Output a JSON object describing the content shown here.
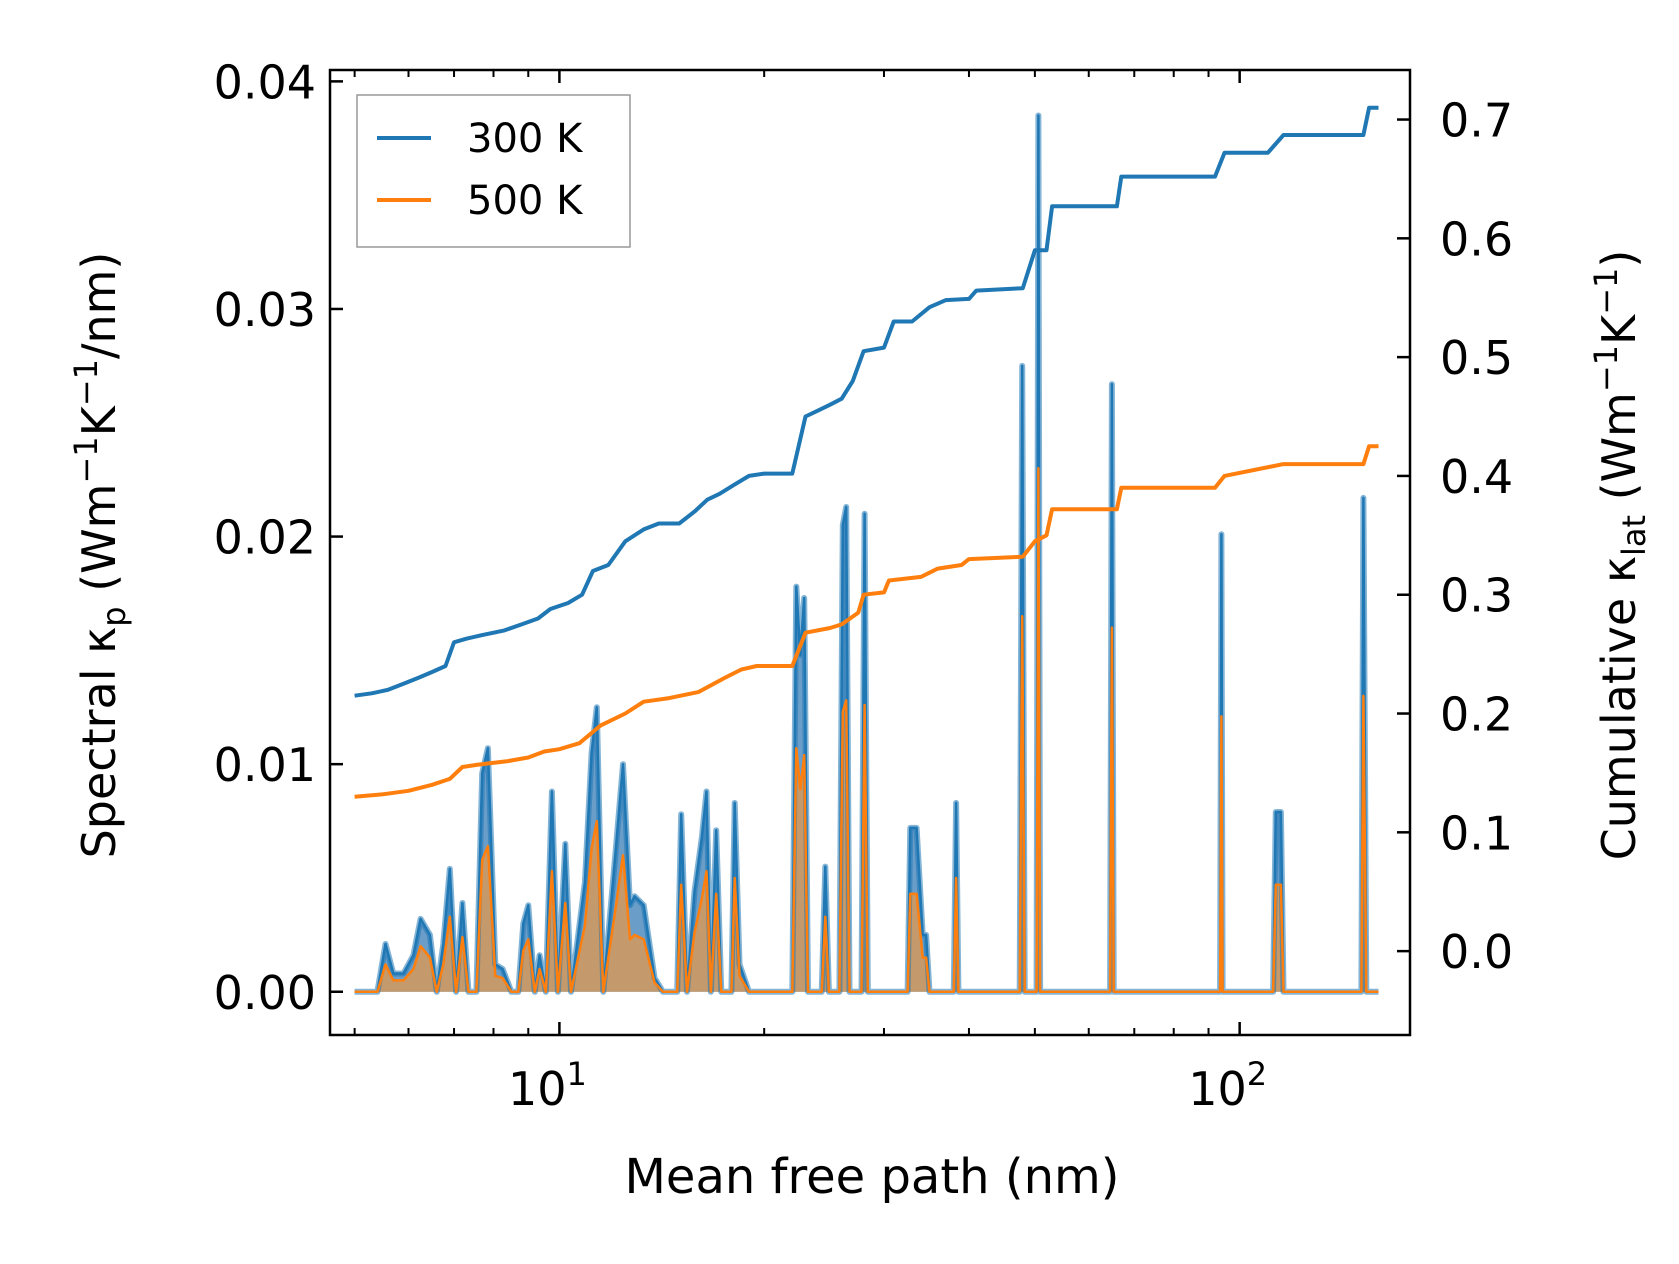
{
  "chart_data": {
    "type": "line",
    "xlabel": "Mean free path (nm)",
    "ylabel_left": {
      "main": "Spectral ",
      "kappa": "κ",
      "sub": "p",
      "open": " (Wm",
      "e1": "−1",
      "k": "K",
      "e2": "−1",
      "tail": "/nm)"
    },
    "ylabel_right": {
      "main": "Cumulative ",
      "kappa": "κ",
      "sub": "lat",
      "open": " (Wm",
      "e1": "−1",
      "k": "K",
      "e2": "−1",
      "close": ")"
    },
    "x_scale": "log",
    "xlim": [
      4.6,
      178
    ],
    "ylim_left": [
      -0.0019,
      0.0405
    ],
    "ylim_right": [
      -0.0706,
      0.7417
    ],
    "x_ticks": [
      {
        "value": 10,
        "base": "10",
        "exp": "1"
      },
      {
        "value": 100,
        "base": "10",
        "exp": "2"
      }
    ],
    "y_ticks_left": [
      "0.00",
      "0.01",
      "0.02",
      "0.03",
      "0.04"
    ],
    "y_ticks_right": [
      "0.0",
      "0.1",
      "0.2",
      "0.3",
      "0.4",
      "0.5",
      "0.6",
      "0.7"
    ],
    "legend": {
      "position": "upper-left",
      "entries": [
        "300 K",
        "500 K"
      ]
    },
    "colors": {
      "300 K": "#1f77b4",
      "500 K": "#ff7f0e",
      "fill_300": "#6a9ec9",
      "fill_500": "#c49a6c"
    },
    "series": [
      {
        "name": "300 K",
        "kind": "cumulative",
        "axis": "right",
        "points": [
          [
            5.0,
            0.215
          ],
          [
            5.3,
            0.217
          ],
          [
            5.6,
            0.22
          ],
          [
            5.9,
            0.225
          ],
          [
            6.2,
            0.23
          ],
          [
            6.5,
            0.235
          ],
          [
            6.8,
            0.24
          ],
          [
            7.0,
            0.26
          ],
          [
            7.3,
            0.263
          ],
          [
            7.7,
            0.266
          ],
          [
            8.3,
            0.27
          ],
          [
            8.8,
            0.275
          ],
          [
            9.3,
            0.28
          ],
          [
            9.7,
            0.288
          ],
          [
            10.3,
            0.293
          ],
          [
            10.8,
            0.3
          ],
          [
            11.2,
            0.32
          ],
          [
            11.8,
            0.325
          ],
          [
            12.5,
            0.345
          ],
          [
            13.3,
            0.355
          ],
          [
            14.0,
            0.36
          ],
          [
            15.0,
            0.36
          ],
          [
            15.8,
            0.37
          ],
          [
            16.5,
            0.38
          ],
          [
            17.2,
            0.385
          ],
          [
            18.0,
            0.392
          ],
          [
            19.0,
            0.4
          ],
          [
            20.0,
            0.402
          ],
          [
            22.0,
            0.402
          ],
          [
            23.0,
            0.45
          ],
          [
            24.0,
            0.455
          ],
          [
            25.0,
            0.46
          ],
          [
            26.0,
            0.465
          ],
          [
            27.0,
            0.48
          ],
          [
            28.0,
            0.505
          ],
          [
            30.0,
            0.508
          ],
          [
            31.0,
            0.53
          ],
          [
            33.0,
            0.53
          ],
          [
            35.0,
            0.542
          ],
          [
            37.0,
            0.548
          ],
          [
            40.0,
            0.549
          ],
          [
            41.0,
            0.556
          ],
          [
            48.0,
            0.558
          ],
          [
            50.0,
            0.59
          ],
          [
            52.0,
            0.59
          ],
          [
            53.0,
            0.627
          ],
          [
            60.0,
            0.627
          ],
          [
            66.0,
            0.627
          ],
          [
            67.0,
            0.652
          ],
          [
            80.0,
            0.652
          ],
          [
            92.0,
            0.652
          ],
          [
            95.0,
            0.672
          ],
          [
            110.0,
            0.672
          ],
          [
            116.0,
            0.687
          ],
          [
            140.0,
            0.687
          ],
          [
            152.0,
            0.687
          ],
          [
            155.0,
            0.71
          ],
          [
            160.0,
            0.71
          ]
        ]
      },
      {
        "name": "500 K",
        "kind": "cumulative",
        "axis": "right",
        "points": [
          [
            5.0,
            0.13
          ],
          [
            5.5,
            0.132
          ],
          [
            6.0,
            0.135
          ],
          [
            6.5,
            0.14
          ],
          [
            6.9,
            0.145
          ],
          [
            7.2,
            0.155
          ],
          [
            7.6,
            0.157
          ],
          [
            8.4,
            0.16
          ],
          [
            9.0,
            0.163
          ],
          [
            9.5,
            0.168
          ],
          [
            10.0,
            0.17
          ],
          [
            10.7,
            0.175
          ],
          [
            11.5,
            0.19
          ],
          [
            12.5,
            0.2
          ],
          [
            13.3,
            0.21
          ],
          [
            14.5,
            0.213
          ],
          [
            16.0,
            0.218
          ],
          [
            17.5,
            0.23
          ],
          [
            18.5,
            0.237
          ],
          [
            19.5,
            0.24
          ],
          [
            22.0,
            0.24
          ],
          [
            23.0,
            0.268
          ],
          [
            25.0,
            0.272
          ],
          [
            26.0,
            0.275
          ],
          [
            27.5,
            0.285
          ],
          [
            28.0,
            0.3
          ],
          [
            30.0,
            0.302
          ],
          [
            30.5,
            0.312
          ],
          [
            34.0,
            0.315
          ],
          [
            36.0,
            0.322
          ],
          [
            39.0,
            0.325
          ],
          [
            40.0,
            0.33
          ],
          [
            48.0,
            0.332
          ],
          [
            50.0,
            0.345
          ],
          [
            52.0,
            0.35
          ],
          [
            53.0,
            0.372
          ],
          [
            66.0,
            0.372
          ],
          [
            67.0,
            0.39
          ],
          [
            92.0,
            0.39
          ],
          [
            95.0,
            0.4
          ],
          [
            116.0,
            0.41
          ],
          [
            152.0,
            0.41
          ],
          [
            155.0,
            0.425
          ],
          [
            160.0,
            0.425
          ]
        ]
      },
      {
        "name": "300 K",
        "kind": "spectral",
        "axis": "left",
        "points": [
          [
            5.0,
            0.0
          ],
          [
            5.4,
            0.0
          ],
          [
            5.55,
            0.0021
          ],
          [
            5.7,
            0.0008
          ],
          [
            5.9,
            0.0008
          ],
          [
            6.1,
            0.0016
          ],
          [
            6.25,
            0.0032
          ],
          [
            6.45,
            0.0025
          ],
          [
            6.6,
            0.0
          ],
          [
            6.75,
            0.0021
          ],
          [
            6.9,
            0.0054
          ],
          [
            7.05,
            0.0
          ],
          [
            7.2,
            0.0039
          ],
          [
            7.35,
            0.0
          ],
          [
            7.55,
            0.0
          ],
          [
            7.7,
            0.0096
          ],
          [
            7.85,
            0.0107
          ],
          [
            8.05,
            0.0012
          ],
          [
            8.25,
            0.001
          ],
          [
            8.5,
            0.0
          ],
          [
            8.7,
            0.0
          ],
          [
            8.85,
            0.003
          ],
          [
            9.0,
            0.0038
          ],
          [
            9.2,
            0.0
          ],
          [
            9.35,
            0.0016
          ],
          [
            9.55,
            0.0
          ],
          [
            9.75,
            0.0088
          ],
          [
            9.95,
            0.0
          ],
          [
            10.2,
            0.0065
          ],
          [
            10.4,
            0.0
          ],
          [
            10.9,
            0.0048
          ],
          [
            11.15,
            0.0105
          ],
          [
            11.35,
            0.0125
          ],
          [
            11.6,
            0.0
          ],
          [
            12.1,
            0.0062
          ],
          [
            12.4,
            0.01
          ],
          [
            12.7,
            0.0038
          ],
          [
            12.9,
            0.0042
          ],
          [
            13.3,
            0.0038
          ],
          [
            13.8,
            0.0006
          ],
          [
            14.2,
            0.0
          ],
          [
            14.9,
            0.0
          ],
          [
            15.1,
            0.0078
          ],
          [
            15.4,
            0.0
          ],
          [
            15.8,
            0.0044
          ],
          [
            16.2,
            0.0068
          ],
          [
            16.45,
            0.0088
          ],
          [
            16.7,
            0.0
          ],
          [
            17.0,
            0.0071
          ],
          [
            17.3,
            0.0
          ],
          [
            17.9,
            0.0
          ],
          [
            18.1,
            0.0083
          ],
          [
            18.4,
            0.0012
          ],
          [
            19.0,
            0.0
          ],
          [
            22.0,
            0.0
          ],
          [
            22.3,
            0.0178
          ],
          [
            22.6,
            0.0148
          ],
          [
            22.9,
            0.0173
          ],
          [
            23.2,
            0.0
          ],
          [
            24.3,
            0.0
          ],
          [
            24.6,
            0.0055
          ],
          [
            24.9,
            0.0
          ],
          [
            25.8,
            0.0
          ],
          [
            26.1,
            0.0205
          ],
          [
            26.4,
            0.0213
          ],
          [
            26.7,
            0.0
          ],
          [
            27.8,
            0.0
          ],
          [
            28.1,
            0.021
          ],
          [
            28.4,
            0.0
          ],
          [
            32.5,
            0.0
          ],
          [
            32.8,
            0.0072
          ],
          [
            33.5,
            0.0072
          ],
          [
            34.2,
            0.0025
          ],
          [
            34.6,
            0.0025
          ],
          [
            35.0,
            0.0
          ],
          [
            38.0,
            0.0
          ],
          [
            38.3,
            0.0083
          ],
          [
            38.6,
            0.0
          ],
          [
            47.5,
            0.0
          ],
          [
            47.9,
            0.0275
          ],
          [
            48.3,
            0.0
          ],
          [
            50.3,
            0.0
          ],
          [
            50.6,
            0.0385
          ],
          [
            50.9,
            0.0
          ],
          [
            64.5,
            0.0
          ],
          [
            64.9,
            0.0267
          ],
          [
            65.3,
            0.0
          ],
          [
            93.6,
            0.0
          ],
          [
            94.0,
            0.0201
          ],
          [
            94.4,
            0.0
          ],
          [
            112.0,
            0.0
          ],
          [
            113.0,
            0.0079
          ],
          [
            115.0,
            0.0079
          ],
          [
            116.0,
            0.0
          ],
          [
            151.0,
            0.0
          ],
          [
            152.0,
            0.0217
          ],
          [
            153.5,
            0.0
          ],
          [
            160.0,
            0.0
          ]
        ]
      },
      {
        "name": "500 K",
        "kind": "spectral",
        "axis": "left",
        "points": [
          [
            5.0,
            0.0
          ],
          [
            5.4,
            0.0
          ],
          [
            5.55,
            0.0012
          ],
          [
            5.7,
            0.0005
          ],
          [
            5.9,
            0.0005
          ],
          [
            6.1,
            0.001
          ],
          [
            6.25,
            0.002
          ],
          [
            6.45,
            0.0015
          ],
          [
            6.6,
            0.0
          ],
          [
            6.75,
            0.0012
          ],
          [
            6.9,
            0.0033
          ],
          [
            7.05,
            0.0
          ],
          [
            7.2,
            0.0024
          ],
          [
            7.35,
            0.0
          ],
          [
            7.55,
            0.0
          ],
          [
            7.7,
            0.0058
          ],
          [
            7.85,
            0.0064
          ],
          [
            8.05,
            0.0007
          ],
          [
            8.25,
            0.0006
          ],
          [
            8.5,
            0.0
          ],
          [
            8.7,
            0.0
          ],
          [
            8.85,
            0.0018
          ],
          [
            9.0,
            0.0023
          ],
          [
            9.2,
            0.0
          ],
          [
            9.35,
            0.001
          ],
          [
            9.55,
            0.0
          ],
          [
            9.75,
            0.0053
          ],
          [
            9.95,
            0.0
          ],
          [
            10.2,
            0.0039
          ],
          [
            10.4,
            0.0
          ],
          [
            10.9,
            0.0029
          ],
          [
            11.15,
            0.0063
          ],
          [
            11.35,
            0.0075
          ],
          [
            11.6,
            0.0
          ],
          [
            12.1,
            0.0037
          ],
          [
            12.4,
            0.006
          ],
          [
            12.7,
            0.0023
          ],
          [
            12.9,
            0.0025
          ],
          [
            13.3,
            0.0023
          ],
          [
            13.8,
            0.0004
          ],
          [
            14.2,
            0.0
          ],
          [
            14.9,
            0.0
          ],
          [
            15.1,
            0.0047
          ],
          [
            15.4,
            0.0
          ],
          [
            15.8,
            0.0026
          ],
          [
            16.2,
            0.0041
          ],
          [
            16.45,
            0.0053
          ],
          [
            16.7,
            0.0
          ],
          [
            17.0,
            0.0043
          ],
          [
            17.3,
            0.0
          ],
          [
            17.9,
            0.0
          ],
          [
            18.1,
            0.005
          ],
          [
            18.4,
            0.0007
          ],
          [
            19.0,
            0.0
          ],
          [
            22.0,
            0.0
          ],
          [
            22.3,
            0.0107
          ],
          [
            22.6,
            0.0089
          ],
          [
            22.9,
            0.0104
          ],
          [
            23.2,
            0.0
          ],
          [
            24.3,
            0.0
          ],
          [
            24.6,
            0.0033
          ],
          [
            24.9,
            0.0
          ],
          [
            25.8,
            0.0
          ],
          [
            26.1,
            0.0123
          ],
          [
            26.4,
            0.0128
          ],
          [
            26.7,
            0.0
          ],
          [
            27.8,
            0.0
          ],
          [
            28.1,
            0.0126
          ],
          [
            28.4,
            0.0
          ],
          [
            32.5,
            0.0
          ],
          [
            32.8,
            0.0043
          ],
          [
            33.5,
            0.0043
          ],
          [
            34.2,
            0.0015
          ],
          [
            34.6,
            0.0015
          ],
          [
            35.0,
            0.0
          ],
          [
            38.0,
            0.0
          ],
          [
            38.3,
            0.005
          ],
          [
            38.6,
            0.0
          ],
          [
            47.5,
            0.0
          ],
          [
            47.9,
            0.0165
          ],
          [
            48.3,
            0.0
          ],
          [
            50.3,
            0.0
          ],
          [
            50.6,
            0.023
          ],
          [
            50.9,
            0.0
          ],
          [
            64.5,
            0.0
          ],
          [
            64.9,
            0.016
          ],
          [
            65.3,
            0.0
          ],
          [
            93.6,
            0.0
          ],
          [
            94.0,
            0.0121
          ],
          [
            94.4,
            0.0
          ],
          [
            112.0,
            0.0
          ],
          [
            113.0,
            0.0047
          ],
          [
            115.0,
            0.0047
          ],
          [
            116.0,
            0.0
          ],
          [
            151.0,
            0.0
          ],
          [
            152.0,
            0.013
          ],
          [
            153.5,
            0.0
          ],
          [
            160.0,
            0.0
          ]
        ]
      }
    ]
  }
}
